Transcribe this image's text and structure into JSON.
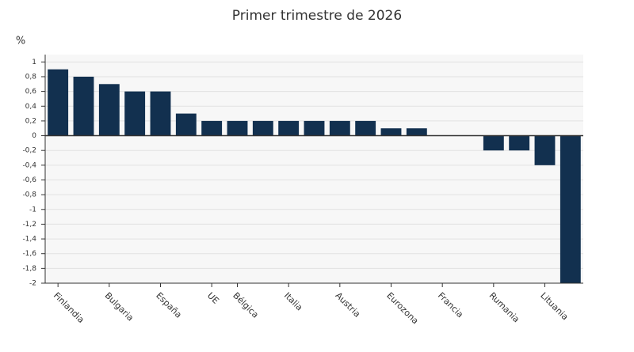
{
  "chart_data": {
    "type": "bar",
    "title": "Primer trimestre de 2026",
    "y_label": "%",
    "categories": [
      "Finlandia",
      null,
      "Bulgaria",
      null,
      "España",
      null,
      "UE",
      "Bélgica",
      null,
      "Italia",
      null,
      "Austria",
      null,
      "Eurozona",
      null,
      "Francia",
      null,
      "Rumania",
      null,
      "Lituania",
      null
    ],
    "values": [
      0.9,
      0.8,
      0.7,
      0.6,
      0.6,
      0.3,
      0.2,
      0.2,
      0.2,
      0.2,
      0.2,
      0.2,
      0.2,
      0.1,
      0.1,
      0,
      0,
      -0.2,
      -0.2,
      -0.4,
      -2
    ],
    "color": "#12304f",
    "ylim": [
      -2,
      1.1
    ],
    "yticks": [
      1,
      {
        "value": 0.8,
        "label": "0,8"
      },
      {
        "value": 0.6,
        "label": "0,6"
      },
      {
        "value": 0.4,
        "label": "0,4"
      },
      {
        "value": 0.2,
        "label": "0,2"
      },
      0,
      {
        "value": -0.2,
        "label": "-0,2"
      },
      {
        "value": -0.4,
        "label": "-0,4"
      },
      {
        "value": -0.6,
        "label": "-0,6"
      },
      {
        "value": -0.8,
        "label": "-0,8"
      },
      -1,
      {
        "value": -1.2,
        "label": "-1,2"
      },
      {
        "value": -1.4,
        "label": "-1,4"
      },
      {
        "value": -1.6,
        "label": "-1,6"
      },
      {
        "value": -1.8,
        "label": "-1,8"
      },
      -2
    ],
    "grid": true
  }
}
